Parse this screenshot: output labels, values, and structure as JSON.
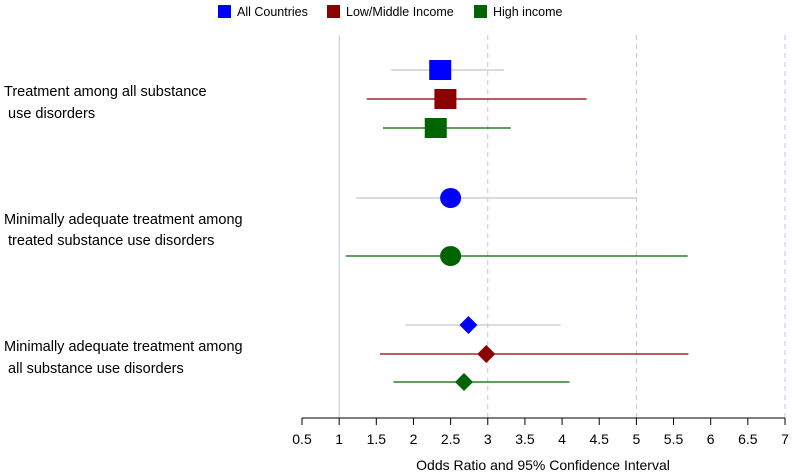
{
  "chart_data": {
    "type": "forest",
    "xlabel": "Odds Ratio and 95% Confidence Interval",
    "xlim": [
      0.5,
      7
    ],
    "ticks": [
      "0.5",
      "1",
      "1.5",
      "2",
      "2.5",
      "3",
      "3.5",
      "4",
      "4.5",
      "5",
      "5.5",
      "6",
      "6.5",
      "7"
    ],
    "reference_lines": {
      "solid": [
        1
      ],
      "dashed": [
        3,
        5,
        7
      ]
    },
    "legend": [
      {
        "name": "All Countries",
        "color": "#0000ff"
      },
      {
        "name": "Low/Middle Income",
        "color": "#8b0000"
      },
      {
        "name": "High income",
        "color": "#006400"
      }
    ],
    "groups": [
      {
        "label_lines": [
          "Treatment among all substance",
          " use disorders"
        ],
        "marker": "square",
        "estimates": [
          {
            "series": "All Countries",
            "or": 2.36,
            "lo": 1.7,
            "hi": 3.22,
            "color": "#0000ff",
            "ci_color": "#c8c8c8"
          },
          {
            "series": "Low/Middle Income",
            "or": 2.43,
            "lo": 1.37,
            "hi": 4.33,
            "color": "#8b0000",
            "ci_color": "#8b0000"
          },
          {
            "series": "High income",
            "or": 2.3,
            "lo": 1.59,
            "hi": 3.31,
            "color": "#006400",
            "ci_color": "#006400"
          }
        ]
      },
      {
        "label_lines": [
          "Minimally adequate treatment among",
          " treated substance use disorders"
        ],
        "marker": "circle",
        "estimates": [
          {
            "series": "All Countries",
            "or": 2.5,
            "lo": 1.23,
            "hi": 5.0,
            "color": "#0000ff",
            "ci_color": "#c8c8c8"
          },
          {
            "series": "High income",
            "or": 2.5,
            "lo": 1.09,
            "hi": 5.69,
            "color": "#006400",
            "ci_color": "#006400"
          }
        ]
      },
      {
        "label_lines": [
          "Minimally adequate treatment among",
          " all substance use disorders"
        ],
        "marker": "diamond",
        "estimates": [
          {
            "series": "All Countries",
            "or": 2.74,
            "lo": 1.89,
            "hi": 3.98,
            "color": "#0000ff",
            "ci_color": "#c8c8c8"
          },
          {
            "series": "Low/Middle Income",
            "or": 2.98,
            "lo": 1.55,
            "hi": 5.7,
            "color": "#8b0000",
            "ci_color": "#8b0000"
          },
          {
            "series": "High income",
            "or": 2.68,
            "lo": 1.73,
            "hi": 4.1,
            "color": "#006400",
            "ci_color": "#006400"
          }
        ]
      }
    ]
  }
}
